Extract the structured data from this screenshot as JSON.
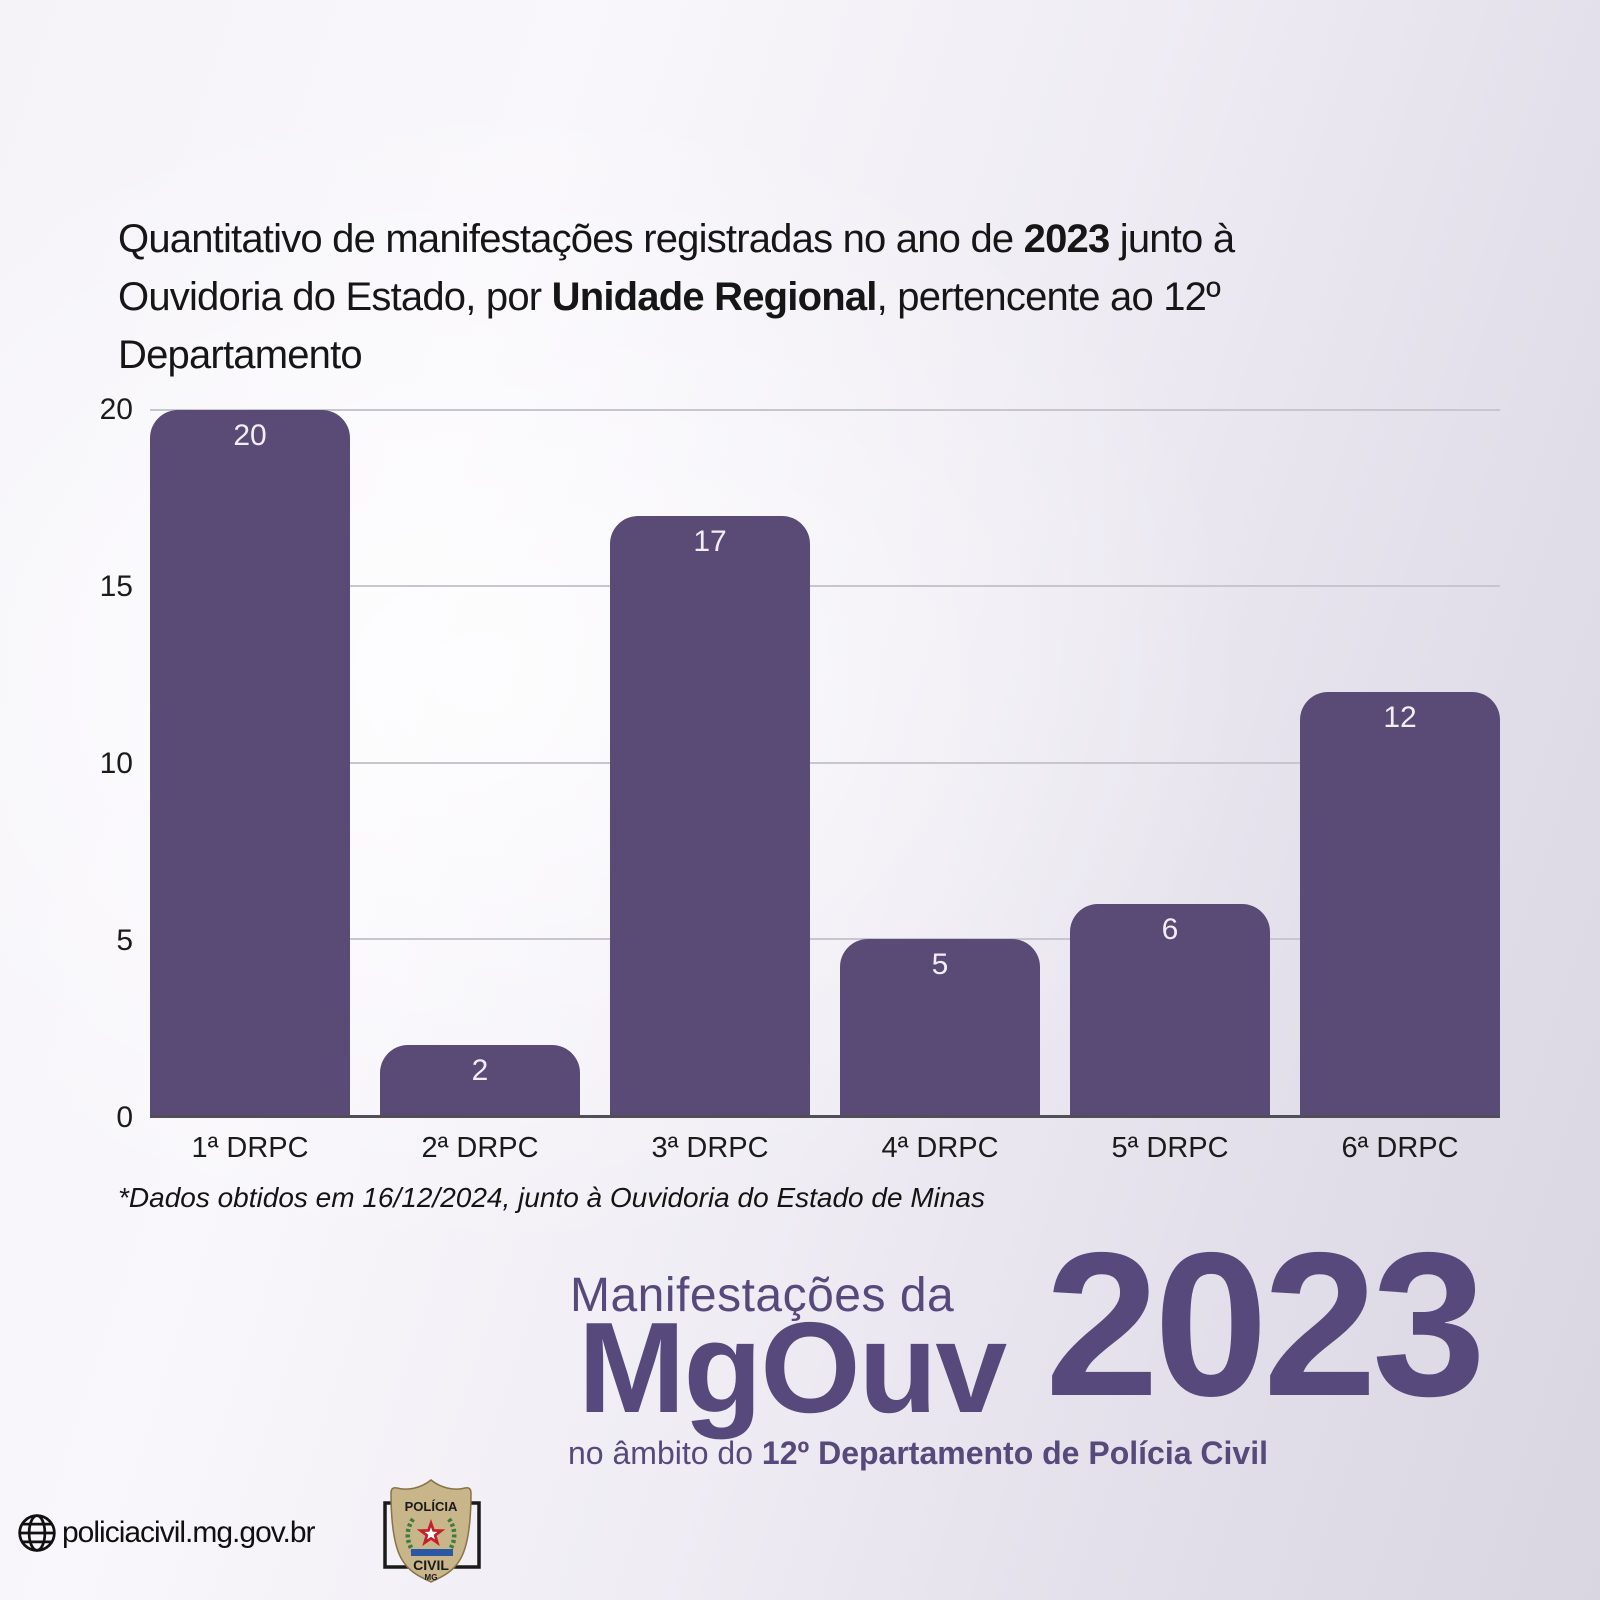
{
  "title": {
    "line1_a": "Quantitativo de manifestações registradas no ano de ",
    "line1_b": "2023",
    "line1_c": " junto à",
    "line2_a": "Ouvidoria do Estado, por ",
    "line2_b": "Unidade Regional",
    "line2_c": ", pertencente ao 12º",
    "line3": "Departamento"
  },
  "chart_data": {
    "type": "bar",
    "categories": [
      "1ª DRPC",
      "2ª DRPC",
      "3ª DRPC",
      "4ª DRPC",
      "5ª DRPC",
      "6ª DRPC"
    ],
    "values": [
      20,
      2,
      17,
      5,
      6,
      12
    ],
    "title": "Quantitativo de manifestações registradas no ano de 2023 junto à Ouvidoria do Estado, por Unidade Regional, pertencente ao 12º Departamento",
    "xlabel": "",
    "ylabel": "",
    "ylim": [
      0,
      20
    ],
    "yticks": [
      0,
      5,
      10,
      15,
      20
    ],
    "grid": true,
    "legend": false,
    "bar_color": "#594a76",
    "value_label_color": "#f2eef6"
  },
  "footnote": "*Dados obtidos em 16/12/2024, junto à Ouvidoria do Estado de Minas",
  "branding": {
    "line1": "Manifestações da",
    "wordmark": "MgOuv",
    "year": "2023",
    "line3_prefix": "no âmbito do ",
    "line3_bold": "12º Departamento de Polícia Civil",
    "color": "#57497c"
  },
  "footer": {
    "url": "policiacivil.mg.gov.br",
    "badge": {
      "top": "POLÍCIA",
      "bottom": "CIVIL",
      "state": "MG"
    }
  }
}
